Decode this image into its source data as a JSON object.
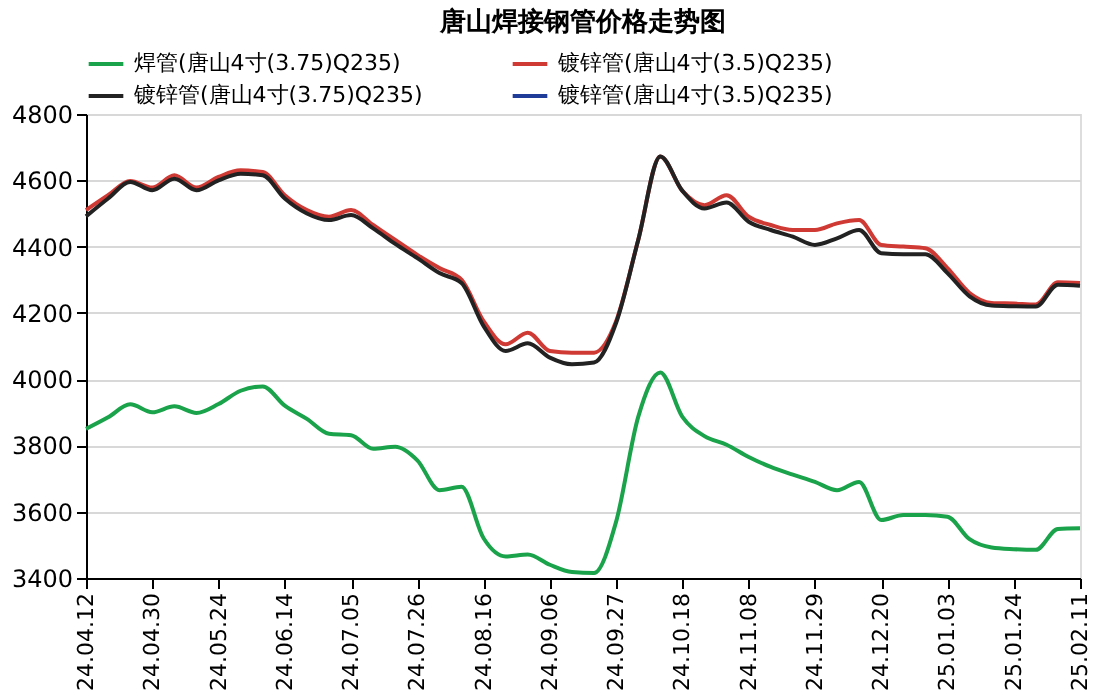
{
  "chart_data": {
    "type": "line",
    "title": "唐山焊接钢管价格走势图",
    "categories": [
      "24.04.12",
      null,
      null,
      "24.04.30",
      null,
      null,
      "24.05.24",
      null,
      null,
      "24.06.14",
      null,
      null,
      "24.07.05",
      null,
      null,
      "24.07.26",
      null,
      null,
      "24.08.16",
      null,
      null,
      "24.09.06",
      null,
      null,
      "24.09.27",
      null,
      null,
      "24.10.18",
      null,
      null,
      "24.11.08",
      null,
      null,
      "24.11.29",
      null,
      null,
      "24.12.20",
      null,
      null,
      "25.01.03",
      null,
      null,
      "25.01.24",
      null,
      null,
      "25.02.11"
    ],
    "series": [
      {
        "name": "焊管(唐山4寸(3.75)Q235)",
        "color": "#1aa34a",
        "values": [
          3850,
          3885,
          3924,
          3900,
          3918,
          3898,
          3925,
          3965,
          3978,
          3920,
          3880,
          3835,
          3831,
          3790,
          3796,
          3755,
          3665,
          3675,
          3520,
          3465,
          3471,
          3440,
          3418,
          3415,
          3570,
          3886,
          4020,
          3886,
          3828,
          3802,
          3765,
          3735,
          3712,
          3690,
          3665,
          3690,
          3575,
          3590,
          3590,
          3585,
          3517,
          3492,
          3487,
          3485,
          3548,
          3550
        ]
      },
      {
        "name": "镀锌管(唐山4寸(3.5)Q235)",
        "color": "#d03a35",
        "values": [
          4510,
          4555,
          4598,
          4578,
          4615,
          4578,
          4610,
          4630,
          4625,
          4555,
          4510,
          4490,
          4510,
          4465,
          4420,
          4375,
          4335,
          4300,
          4175,
          4105,
          4140,
          4085,
          4080,
          4080,
          4175,
          4420,
          4672,
          4568,
          4525,
          4555,
          4490,
          4465,
          4450,
          4450,
          4470,
          4480,
          4405,
          4400,
          4395,
          4335,
          4260,
          4230,
          4228,
          4225,
          4292,
          4290
        ]
      },
      {
        "name": "镀锌管(唐山4寸(3.75)Q235)",
        "color": "#222222",
        "values": [
          4491,
          4545,
          4595,
          4570,
          4605,
          4570,
          4600,
          4620,
          4615,
          4545,
          4500,
          4480,
          4495,
          4455,
          4408,
          4365,
          4320,
          4290,
          4160,
          4085,
          4108,
          4065,
          4045,
          4050,
          4170,
          4420,
          4672,
          4568,
          4515,
          4533,
          4475,
          4450,
          4430,
          4405,
          4425,
          4450,
          4380,
          4377,
          4377,
          4320,
          4250,
          4222,
          4220,
          4219,
          4285,
          4282
        ]
      },
      {
        "name": "镀锌管(唐山4寸(3.5)Q235)",
        "color": "#1f3c99",
        "values": [
          null,
          null,
          null,
          null,
          null,
          null,
          null,
          null,
          null,
          null,
          null,
          null,
          null,
          null,
          null,
          null,
          null,
          null,
          null,
          null,
          null,
          null,
          null,
          null,
          null,
          null,
          null,
          null,
          null,
          null,
          null,
          null,
          null,
          null,
          null,
          null,
          null,
          null,
          null,
          null,
          null,
          null,
          null,
          null,
          null,
          null
        ]
      }
    ],
    "ylim": [
      3400,
      4800
    ],
    "yticks": [
      3400,
      3600,
      3800,
      4000,
      4200,
      4400,
      4600,
      4800
    ],
    "grid": "y",
    "legend": "top",
    "marker": "none",
    "line_style": "solid"
  }
}
